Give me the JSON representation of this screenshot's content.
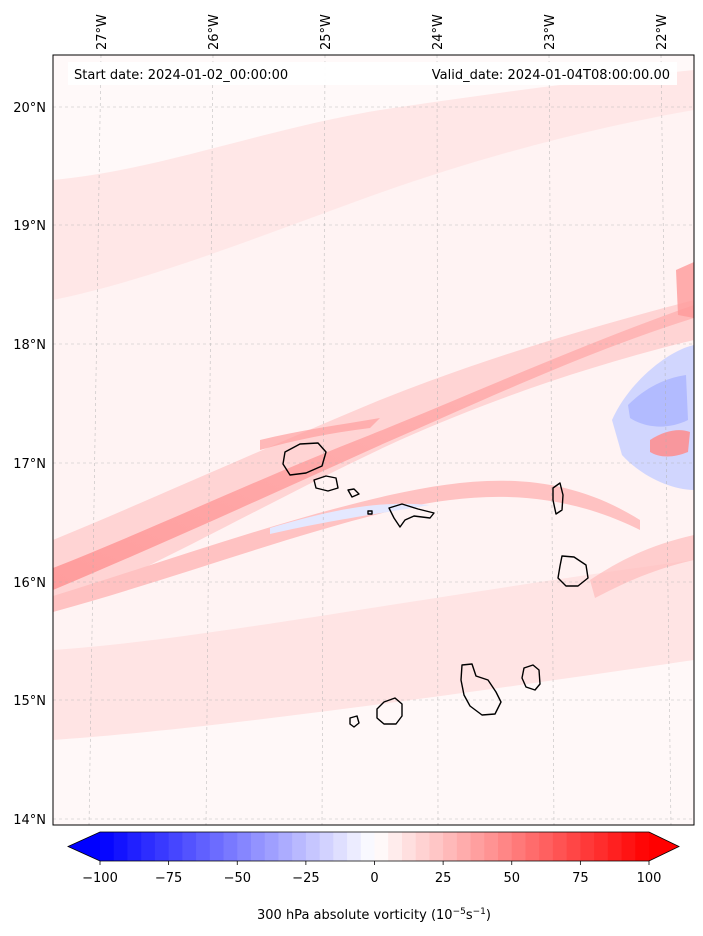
{
  "header": {
    "start_date": "Start date: 2024-01-02_00:00:00",
    "valid_date": "Valid_date: 2024-01-04T08:00:00.00"
  },
  "map": {
    "lon_ticks": [
      "27°W",
      "26°W",
      "25°W",
      "24°W",
      "23°W",
      "22°W"
    ],
    "lat_ticks": [
      "20°N",
      "19°N",
      "18°N",
      "17°N",
      "16°N",
      "15°N",
      "14°N"
    ],
    "lon_range": [
      -27.4,
      -21.7
    ],
    "lat_range": [
      13.95,
      20.4
    ],
    "gridlines": true,
    "coastline_color": "#000000"
  },
  "colorbar": {
    "ticks": [
      "−100",
      "−75",
      "−50",
      "−25",
      "0",
      "25",
      "50",
      "75",
      "100"
    ],
    "label_prefix": "300 hPa absolute vorticity (10",
    "label_exp1": "−5",
    "label_mid": "s",
    "label_exp2": "−1",
    "label_suffix": ")",
    "range": [
      -100,
      100
    ],
    "colormap": "bwr",
    "extend": "both",
    "min_color": "#0000ff",
    "mid_color": "#ffffff",
    "max_color": "#ff0000"
  }
}
